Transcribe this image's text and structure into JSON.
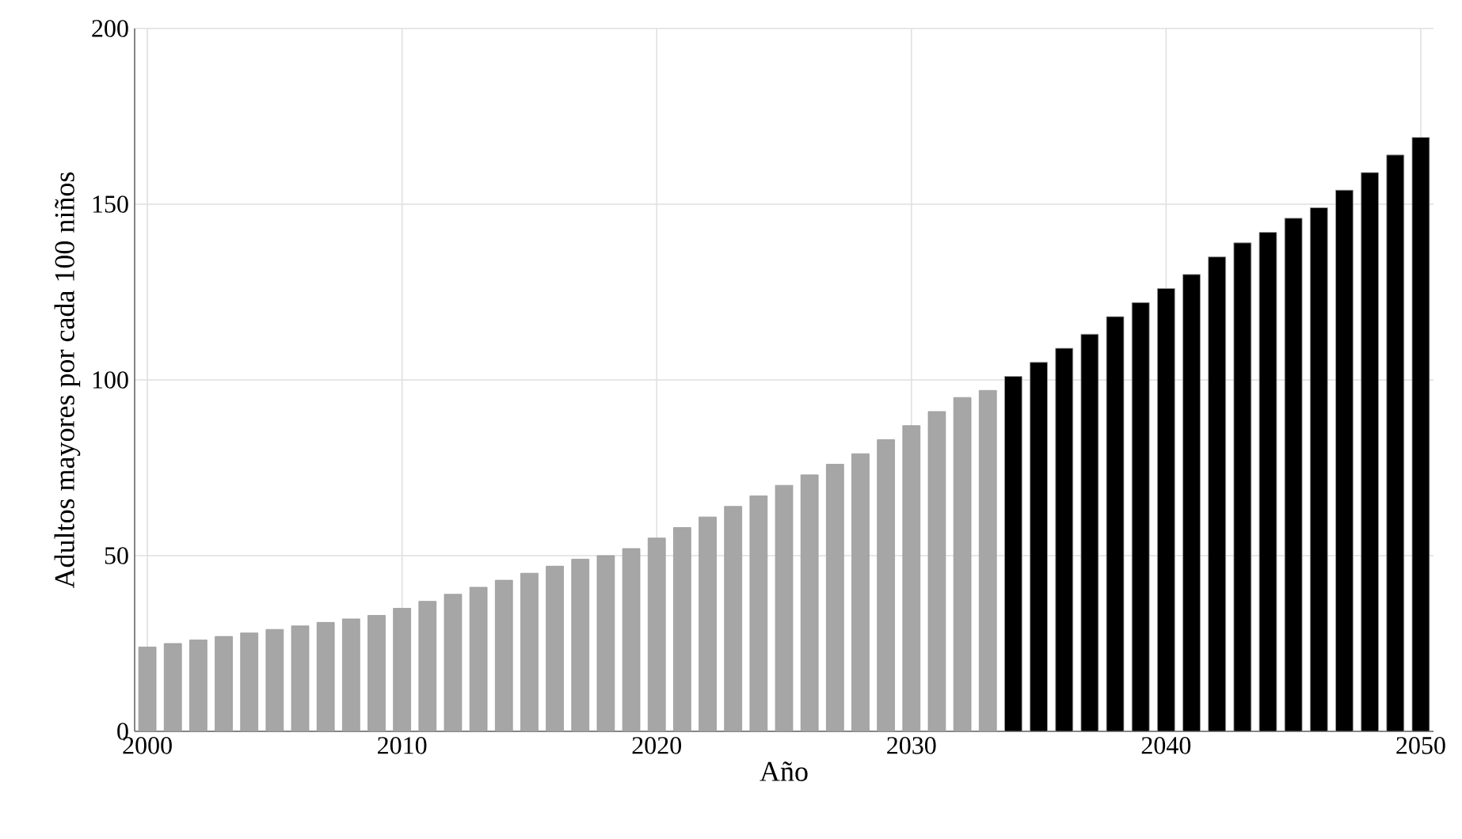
{
  "chart_data": {
    "type": "bar",
    "xlabel": "Año",
    "ylabel": "Adultos mayores por cada 100 niños",
    "series": [
      {
        "color": "#a6a6a6",
        "x": [
          2000,
          2001,
          2002,
          2003,
          2004,
          2005,
          2006,
          2007,
          2008,
          2009,
          2010,
          2011,
          2012,
          2013,
          2014,
          2015,
          2016,
          2017,
          2018,
          2019,
          2020,
          2021,
          2022,
          2023,
          2024,
          2025,
          2026,
          2027,
          2028,
          2029,
          2030,
          2031,
          2032,
          2033
        ],
        "values": [
          24,
          25,
          26,
          27,
          28,
          29,
          30,
          31,
          32,
          33,
          35,
          37,
          39,
          41,
          43,
          45,
          47,
          49,
          50,
          52,
          55,
          58,
          61,
          64,
          67,
          70,
          73,
          76,
          79,
          83,
          87,
          91,
          95,
          97
        ]
      },
      {
        "color": "#000000",
        "x": [
          2034,
          2035,
          2036,
          2037,
          2038,
          2039,
          2040,
          2041,
          2042,
          2043,
          2044,
          2045,
          2046,
          2047,
          2048,
          2049,
          2050
        ],
        "values": [
          101,
          105,
          109,
          113,
          118,
          122,
          126,
          130,
          135,
          139,
          142,
          146,
          149,
          154,
          159,
          164,
          169
        ]
      }
    ],
    "xlim": [
      1999.5,
      2050.5
    ],
    "xticks": [
      2000,
      2010,
      2020,
      2030,
      2040,
      2050
    ],
    "ylim": [
      0,
      200
    ],
    "yticks": [
      0,
      50,
      100,
      150,
      200
    ],
    "grid": true
  }
}
